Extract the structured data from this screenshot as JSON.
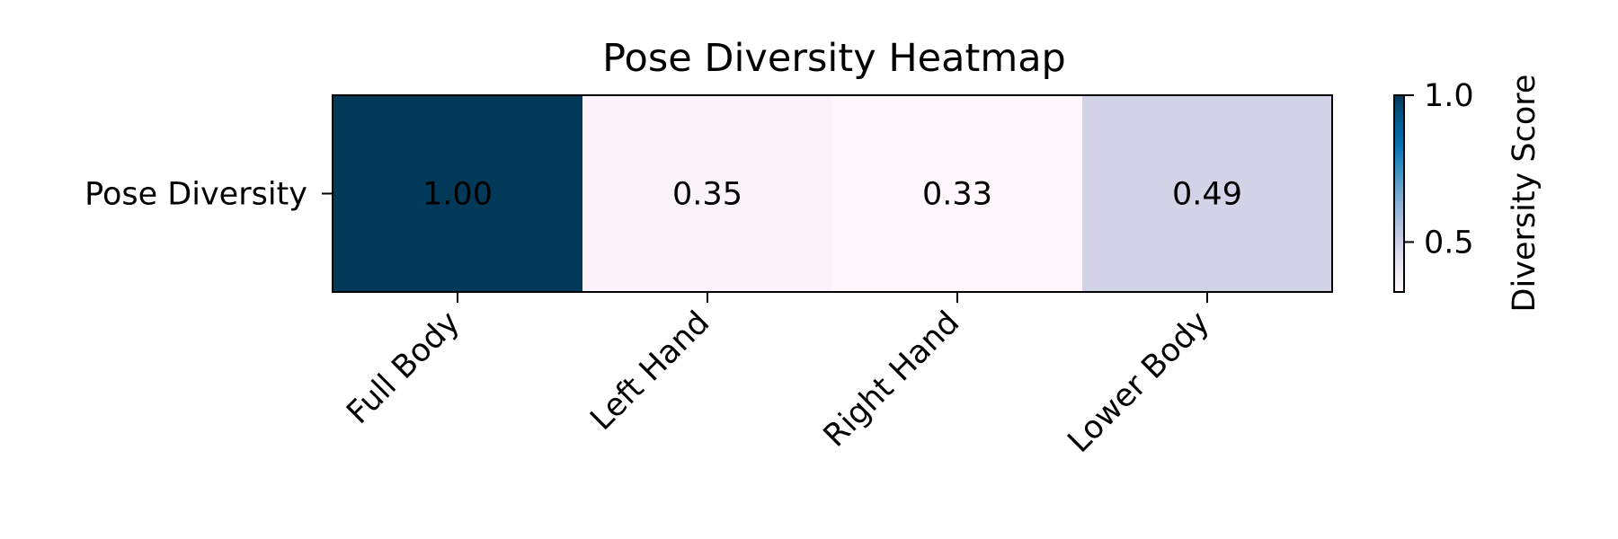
{
  "chart_data": {
    "type": "heatmap",
    "title": "Pose Diversity Heatmap",
    "rows": [
      "Pose Diversity"
    ],
    "columns": [
      "Full Body",
      "Left Hand",
      "Right Hand",
      "Lower Body"
    ],
    "values": [
      [
        1.0,
        0.35,
        0.33,
        0.49
      ]
    ],
    "cell_labels": [
      [
        "1.00",
        "0.35",
        "0.33",
        "0.49"
      ]
    ],
    "colormap": "PuBu",
    "vmin": 0.33,
    "vmax": 1.0,
    "colorbar": {
      "label": "Diversity Score",
      "ticks": [
        0.5,
        1.0
      ],
      "tick_labels": [
        "0.5",
        "1.0"
      ]
    }
  }
}
